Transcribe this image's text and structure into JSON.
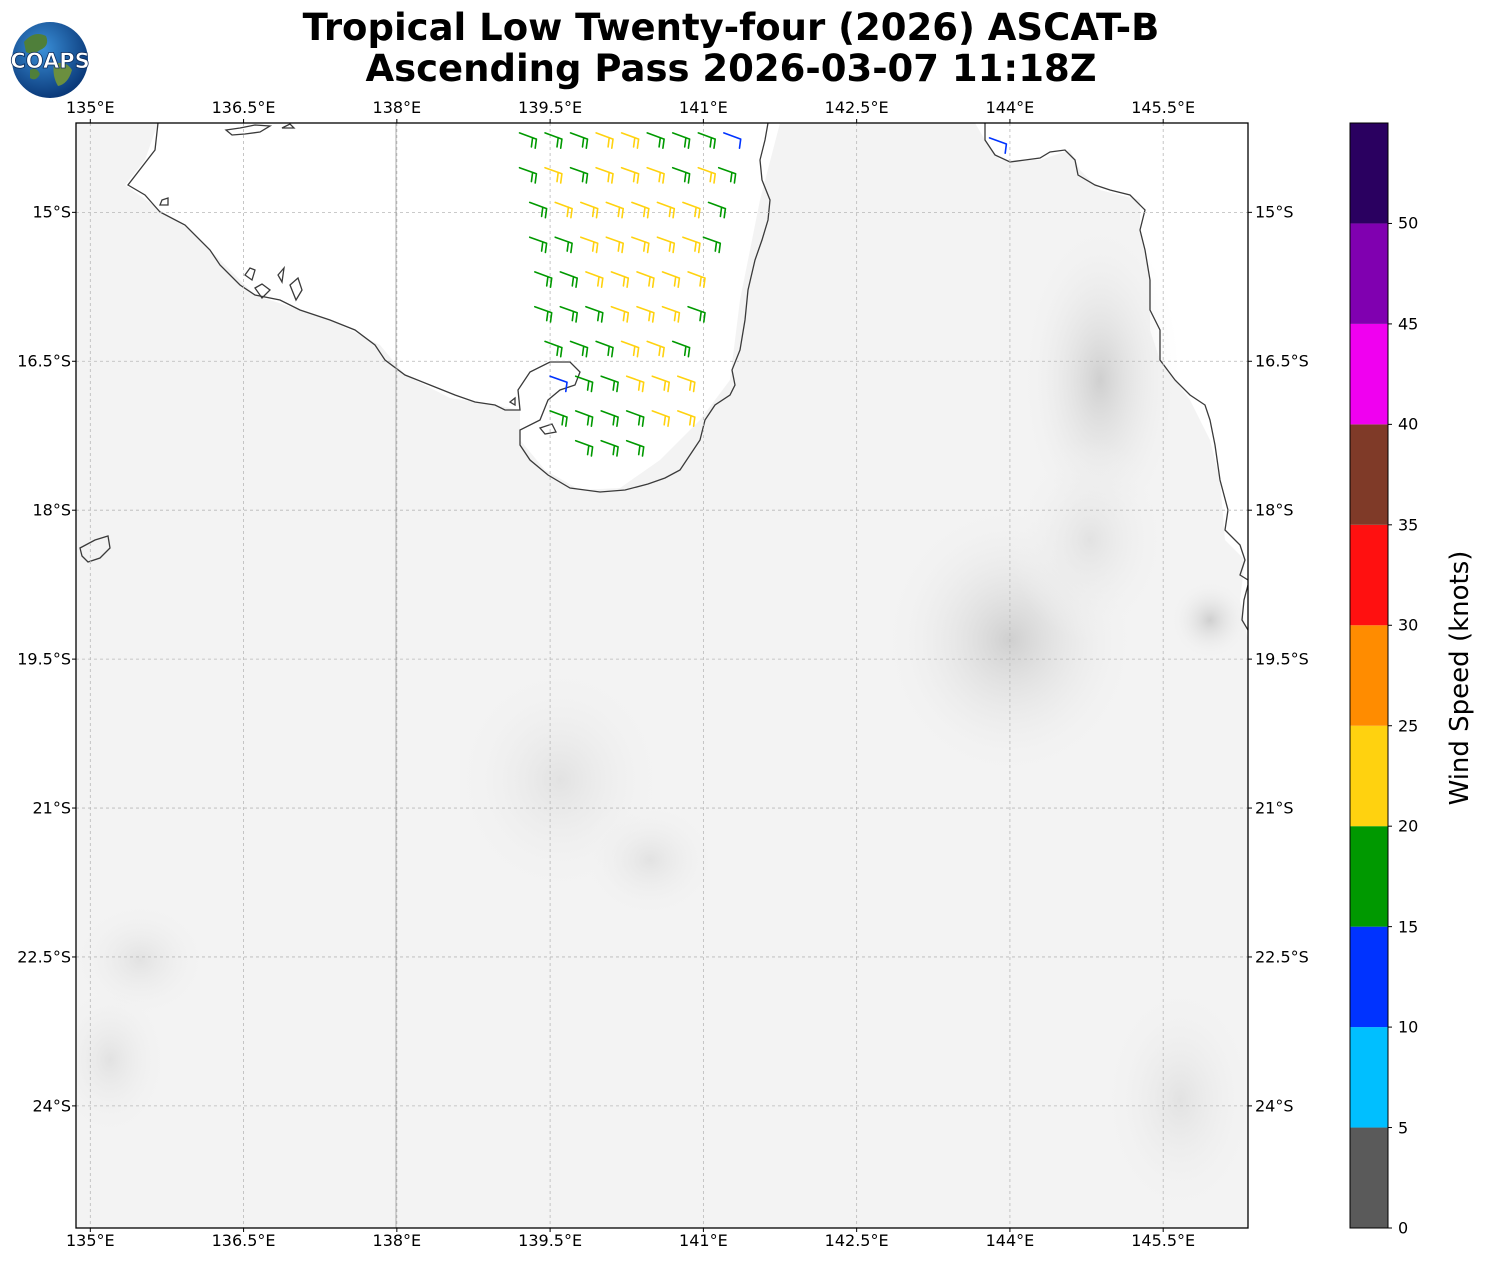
{
  "title": {
    "line1": "Tropical Low Twenty-four (2026) ASCAT-B",
    "line2": "Ascending Pass 2026-03-07 11:18Z"
  },
  "logo": {
    "text": "COAPS",
    "icon": "globe-logo"
  },
  "map": {
    "lon_range": [
      134.86,
      146.33
    ],
    "lat_range": [
      -25.23,
      -14.1
    ],
    "lon_ticks": [
      "135°E",
      "136.5°E",
      "138°E",
      "139.5°E",
      "141°E",
      "142.5°E",
      "144°E",
      "145.5°E"
    ],
    "lat_ticks": [
      "15°S",
      "16.5°S",
      "18°S",
      "19.5°S",
      "21°S",
      "22.5°S",
      "24°S"
    ],
    "grid": true
  },
  "colorbar": {
    "label": "Wind Speed (knots)",
    "ticks": [
      "0",
      "5",
      "10",
      "15",
      "20",
      "25",
      "30",
      "35",
      "40",
      "45",
      "50"
    ],
    "bins": [
      {
        "min": 0,
        "max": 5,
        "color": "#5a5a5a"
      },
      {
        "min": 5,
        "max": 10,
        "color": "#00bfff"
      },
      {
        "min": 10,
        "max": 15,
        "color": "#0033ff"
      },
      {
        "min": 15,
        "max": 20,
        "color": "#009900"
      },
      {
        "min": 20,
        "max": 25,
        "color": "#ffd20f"
      },
      {
        "min": 25,
        "max": 30,
        "color": "#ff8c00"
      },
      {
        "min": 30,
        "max": 35,
        "color": "#ff1010"
      },
      {
        "min": 35,
        "max": 40,
        "color": "#7f3a28"
      },
      {
        "min": 40,
        "max": 45,
        "color": "#f000f0"
      },
      {
        "min": 45,
        "max": 50,
        "color": "#8000b0"
      },
      {
        "min": 50,
        "max": 55,
        "color": "#2a0060"
      }
    ]
  },
  "chart_data": {
    "type": "scatter",
    "description_kind": "wind barbs",
    "units": "knots",
    "wind_direction_from_deg": 110,
    "barbs": [
      {
        "lon": 139.2,
        "lat": -14.2,
        "spd": 18
      },
      {
        "lon": 139.45,
        "lat": -14.2,
        "spd": 18
      },
      {
        "lon": 139.7,
        "lat": -14.2,
        "spd": 18
      },
      {
        "lon": 139.95,
        "lat": -14.2,
        "spd": 22
      },
      {
        "lon": 140.2,
        "lat": -14.2,
        "spd": 22
      },
      {
        "lon": 140.45,
        "lat": -14.2,
        "spd": 18
      },
      {
        "lon": 140.7,
        "lat": -14.2,
        "spd": 18
      },
      {
        "lon": 140.95,
        "lat": -14.2,
        "spd": 18
      },
      {
        "lon": 141.2,
        "lat": -14.2,
        "spd": 12
      },
      {
        "lon": 139.2,
        "lat": -14.55,
        "spd": 18
      },
      {
        "lon": 139.45,
        "lat": -14.55,
        "spd": 22
      },
      {
        "lon": 139.7,
        "lat": -14.55,
        "spd": 18
      },
      {
        "lon": 139.95,
        "lat": -14.55,
        "spd": 22
      },
      {
        "lon": 140.2,
        "lat": -14.55,
        "spd": 22
      },
      {
        "lon": 140.45,
        "lat": -14.55,
        "spd": 22
      },
      {
        "lon": 140.7,
        "lat": -14.55,
        "spd": 18
      },
      {
        "lon": 140.95,
        "lat": -14.55,
        "spd": 22
      },
      {
        "lon": 141.15,
        "lat": -14.55,
        "spd": 18
      },
      {
        "lon": 139.3,
        "lat": -14.9,
        "spd": 18
      },
      {
        "lon": 139.55,
        "lat": -14.9,
        "spd": 22
      },
      {
        "lon": 139.8,
        "lat": -14.9,
        "spd": 22
      },
      {
        "lon": 140.05,
        "lat": -14.9,
        "spd": 22
      },
      {
        "lon": 140.3,
        "lat": -14.9,
        "spd": 22
      },
      {
        "lon": 140.55,
        "lat": -14.9,
        "spd": 22
      },
      {
        "lon": 140.8,
        "lat": -14.9,
        "spd": 22
      },
      {
        "lon": 141.05,
        "lat": -14.9,
        "spd": 18
      },
      {
        "lon": 139.3,
        "lat": -15.25,
        "spd": 18
      },
      {
        "lon": 139.55,
        "lat": -15.25,
        "spd": 18
      },
      {
        "lon": 139.8,
        "lat": -15.25,
        "spd": 22
      },
      {
        "lon": 140.05,
        "lat": -15.25,
        "spd": 22
      },
      {
        "lon": 140.3,
        "lat": -15.25,
        "spd": 22
      },
      {
        "lon": 140.55,
        "lat": -15.25,
        "spd": 22
      },
      {
        "lon": 140.8,
        "lat": -15.25,
        "spd": 22
      },
      {
        "lon": 141.0,
        "lat": -15.25,
        "spd": 18
      },
      {
        "lon": 139.35,
        "lat": -15.6,
        "spd": 18
      },
      {
        "lon": 139.6,
        "lat": -15.6,
        "spd": 18
      },
      {
        "lon": 139.85,
        "lat": -15.6,
        "spd": 22
      },
      {
        "lon": 140.1,
        "lat": -15.6,
        "spd": 22
      },
      {
        "lon": 140.35,
        "lat": -15.6,
        "spd": 22
      },
      {
        "lon": 140.6,
        "lat": -15.6,
        "spd": 22
      },
      {
        "lon": 140.85,
        "lat": -15.6,
        "spd": 22
      },
      {
        "lon": 139.35,
        "lat": -15.95,
        "spd": 18
      },
      {
        "lon": 139.6,
        "lat": -15.95,
        "spd": 18
      },
      {
        "lon": 139.85,
        "lat": -15.95,
        "spd": 18
      },
      {
        "lon": 140.1,
        "lat": -15.95,
        "spd": 22
      },
      {
        "lon": 140.35,
        "lat": -15.95,
        "spd": 22
      },
      {
        "lon": 140.6,
        "lat": -15.95,
        "spd": 22
      },
      {
        "lon": 140.85,
        "lat": -15.95,
        "spd": 18
      },
      {
        "lon": 139.45,
        "lat": -16.3,
        "spd": 18
      },
      {
        "lon": 139.7,
        "lat": -16.3,
        "spd": 18
      },
      {
        "lon": 139.95,
        "lat": -16.3,
        "spd": 18
      },
      {
        "lon": 140.2,
        "lat": -16.3,
        "spd": 22
      },
      {
        "lon": 140.45,
        "lat": -16.3,
        "spd": 22
      },
      {
        "lon": 140.7,
        "lat": -16.3,
        "spd": 18
      },
      {
        "lon": 139.5,
        "lat": -16.65,
        "spd": 12
      },
      {
        "lon": 139.75,
        "lat": -16.65,
        "spd": 18
      },
      {
        "lon": 140.0,
        "lat": -16.65,
        "spd": 18
      },
      {
        "lon": 140.25,
        "lat": -16.65,
        "spd": 22
      },
      {
        "lon": 140.5,
        "lat": -16.65,
        "spd": 22
      },
      {
        "lon": 140.75,
        "lat": -16.65,
        "spd": 22
      },
      {
        "lon": 139.5,
        "lat": -17.0,
        "spd": 18
      },
      {
        "lon": 139.75,
        "lat": -17.0,
        "spd": 18
      },
      {
        "lon": 140.0,
        "lat": -17.0,
        "spd": 18
      },
      {
        "lon": 140.25,
        "lat": -17.0,
        "spd": 18
      },
      {
        "lon": 140.5,
        "lat": -17.0,
        "spd": 22
      },
      {
        "lon": 140.75,
        "lat": -17.0,
        "spd": 22
      },
      {
        "lon": 139.75,
        "lat": -17.3,
        "spd": 18
      },
      {
        "lon": 140.0,
        "lat": -17.3,
        "spd": 18
      },
      {
        "lon": 140.25,
        "lat": -17.3,
        "spd": 18
      },
      {
        "lon": 143.8,
        "lat": -14.25,
        "spd": 12
      }
    ]
  }
}
